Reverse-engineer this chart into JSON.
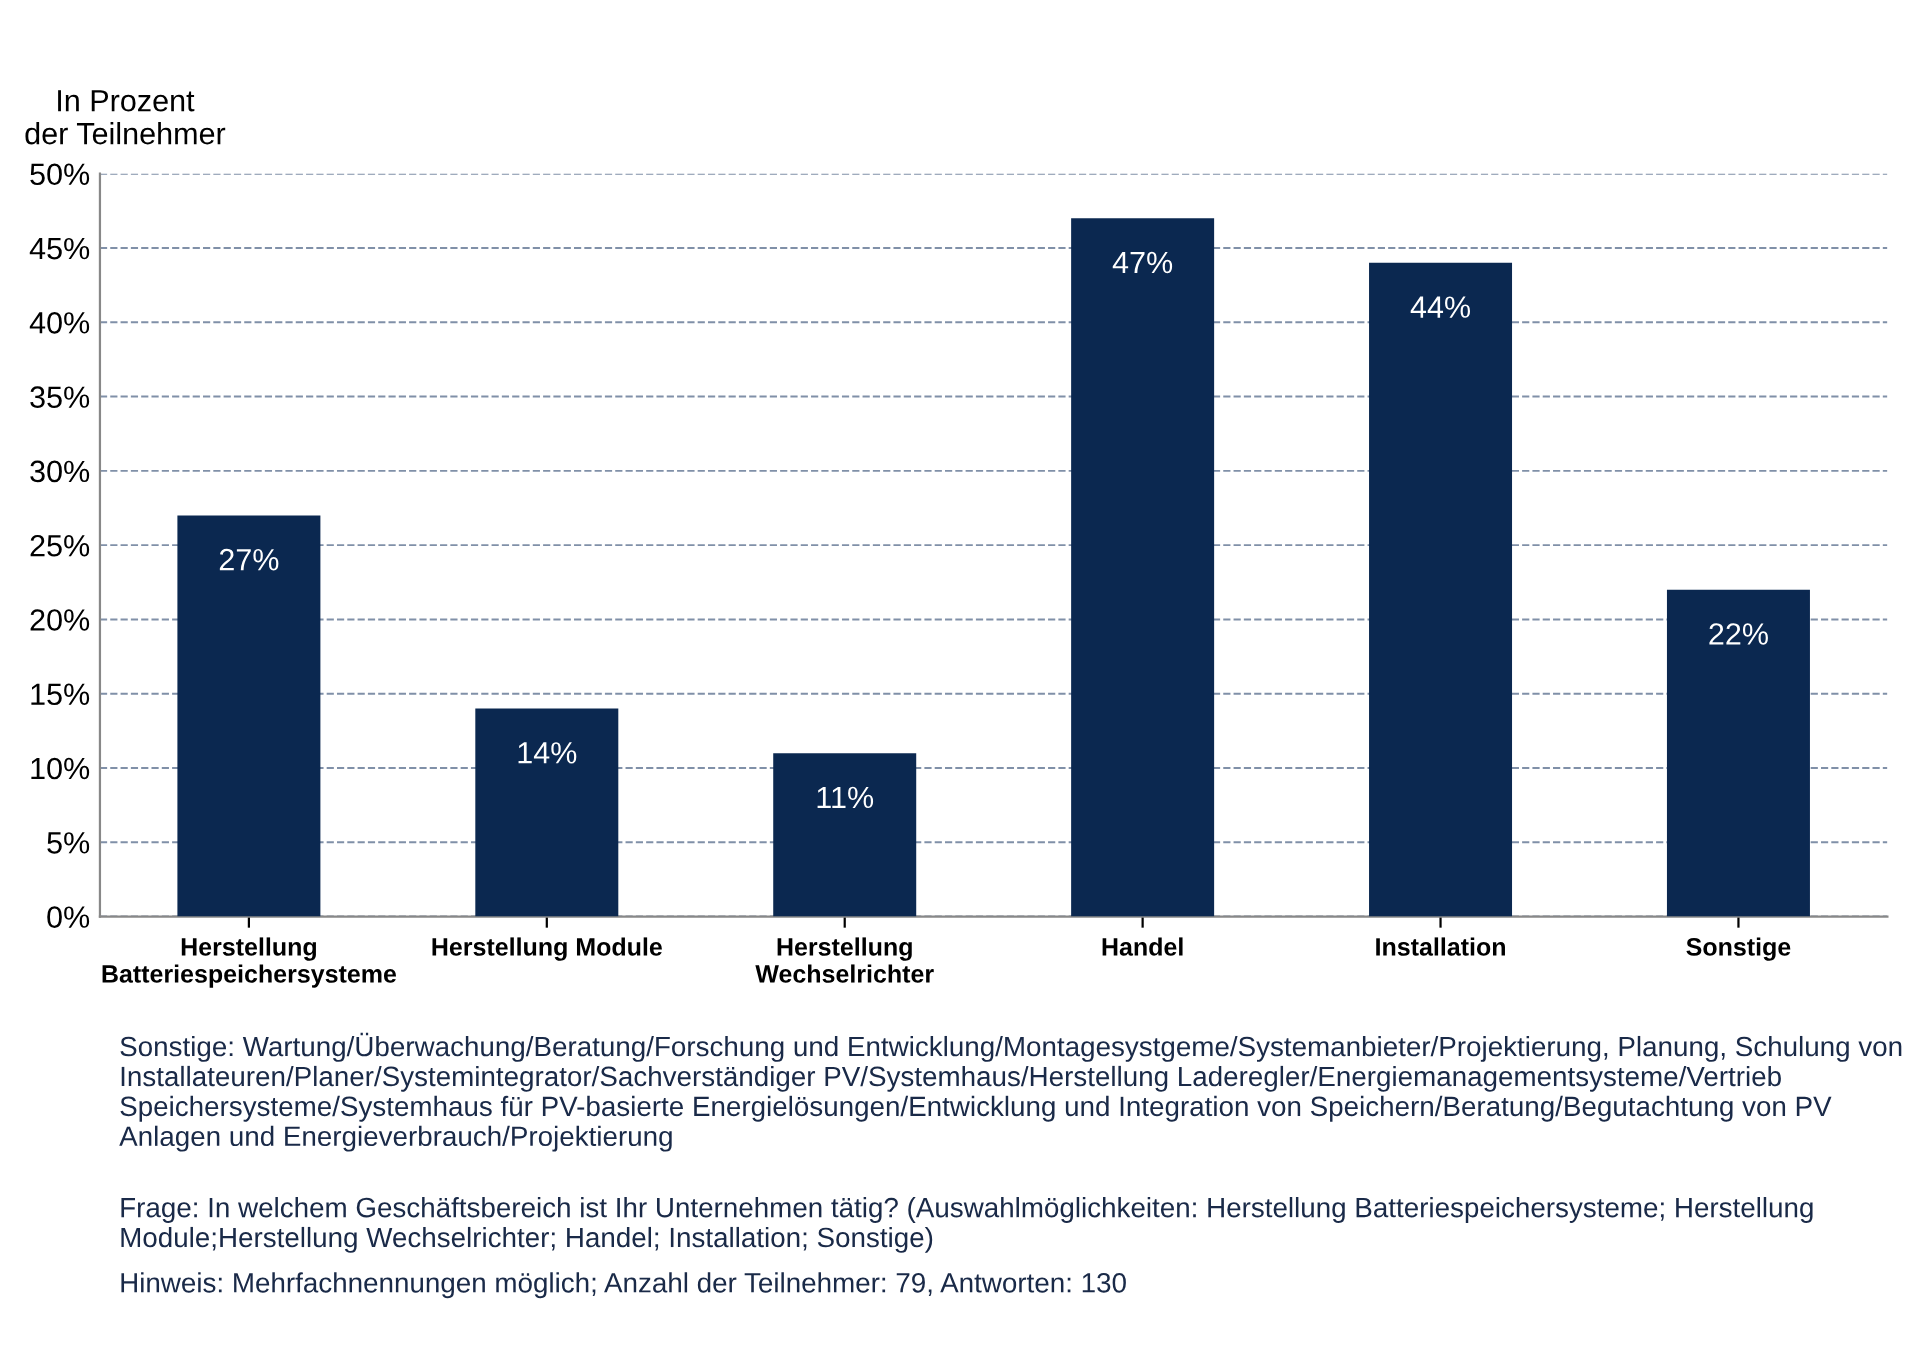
{
  "chart_data": {
    "type": "bar",
    "ylabel": "In Prozent\nder Teilnehmer",
    "categories": [
      "Herstellung\nBatteriespeichersysteme",
      "Herstellung Module",
      "Herstellung\nWechselrichter",
      "Handel",
      "Installation",
      "Sonstige"
    ],
    "values": [
      27,
      14,
      11,
      47,
      44,
      22
    ],
    "color": "#0b2850",
    "value_labels": [
      "27%",
      "14%",
      "11%",
      "47%",
      "44%",
      "22%"
    ],
    "ylim": [
      0,
      50
    ],
    "yticks": [
      {
        "value": 0,
        "label": "0%"
      },
      {
        "value": 5,
        "label": "5%"
      },
      {
        "value": 10,
        "label": "10%"
      },
      {
        "value": 15,
        "label": "15%"
      },
      {
        "value": 20,
        "label": "20%"
      },
      {
        "value": 25,
        "label": "25%"
      },
      {
        "value": 30,
        "label": "30%"
      },
      {
        "value": 35,
        "label": "35%"
      },
      {
        "value": 40,
        "label": "40%"
      },
      {
        "value": 45,
        "label": "45%"
      },
      {
        "value": 50,
        "label": "50%"
      }
    ],
    "grid": "y",
    "legend": false,
    "annotations": [
      "Sonstige: Wartung/Überwachung/Beratung/Forschung und Entwicklung/Montagesystgeme/Systemanbieter/Projektierung, Planung, Schulung von Installateuren/Planer/Systemintegrator/Sachverständiger PV/Systemhaus/Herstellung Laderegler/Energiemanagementsysteme/Vertrieb Speichersysteme/Systemhaus für PV-basierte Energielösungen/Entwicklung und Integration von Speichern/Beratung/Begutachtung von PV Anlagen und Energieverbrauch/Projektierung",
      "Frage: In welchem Geschäftsbereich ist Ihr Unternehmen tätig? (Auswahlmöglichkeiten: Herstellung Batteriespeichersysteme; Herstellung Module;Herstellung Wechselrichter; Handel; Installation; Sonstige)",
      "Hinweis: Mehrfachnennungen möglich; Anzahl der Teilnehmer: 79, Antworten: 130"
    ]
  }
}
